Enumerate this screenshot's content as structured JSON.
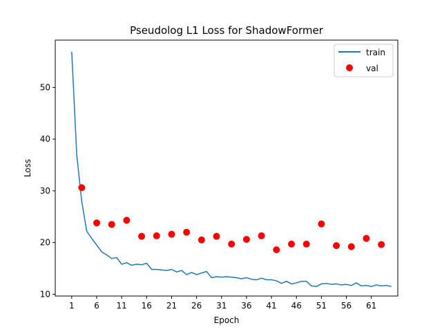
{
  "chart_data": {
    "type": "line",
    "title": "Pseudolog L1 Loss for ShadowFormer",
    "xlabel": "Epoch",
    "ylabel": "Loss",
    "xlim": [
      -2.3,
      66.3
    ],
    "ylim": [
      9.65,
      59.15
    ],
    "xticks": [
      1,
      6,
      11,
      16,
      21,
      26,
      31,
      36,
      41,
      46,
      51,
      56,
      61
    ],
    "yticks": [
      10,
      20,
      30,
      40,
      50
    ],
    "grid": false,
    "legend_position": "top-right",
    "series": [
      {
        "name": "train",
        "kind": "line",
        "color": "#1f77b4",
        "x": [
          1,
          2,
          3,
          4,
          5,
          6,
          7,
          8,
          9,
          10,
          11,
          12,
          13,
          14,
          15,
          16,
          17,
          18,
          19,
          20,
          21,
          22,
          23,
          24,
          25,
          26,
          27,
          28,
          29,
          30,
          31,
          32,
          33,
          34,
          35,
          36,
          37,
          38,
          39,
          40,
          41,
          42,
          43,
          44,
          45,
          46,
          47,
          48,
          49,
          50,
          51,
          52,
          53,
          54,
          55,
          56,
          57,
          58,
          59,
          60,
          61,
          62,
          63,
          64,
          65
        ],
        "y": [
          56.9,
          37.0,
          28.0,
          22.2,
          20.8,
          19.5,
          18.2,
          17.6,
          16.9,
          17.1,
          15.8,
          16.1,
          15.6,
          15.8,
          15.7,
          16.0,
          14.8,
          14.8,
          14.7,
          14.6,
          14.8,
          14.3,
          14.6,
          13.8,
          14.2,
          13.8,
          14.1,
          14.4,
          13.2,
          13.4,
          13.3,
          13.4,
          13.3,
          13.2,
          13.0,
          13.2,
          12.9,
          12.8,
          13.1,
          12.8,
          12.8,
          12.6,
          12.1,
          12.5,
          12.0,
          12.2,
          12.5,
          12.5,
          11.6,
          11.5,
          12.0,
          12.1,
          11.9,
          12.0,
          11.8,
          11.9,
          11.7,
          12.2,
          11.6,
          11.7,
          11.5,
          11.8,
          11.6,
          11.7,
          11.5
        ]
      },
      {
        "name": "val",
        "kind": "scatter",
        "color": "#ff0000",
        "x": [
          3,
          6,
          9,
          12,
          15,
          18,
          21,
          24,
          27,
          30,
          33,
          36,
          39,
          42,
          45,
          48,
          51,
          54,
          57,
          60,
          63
        ],
        "y": [
          30.6,
          23.8,
          23.5,
          24.3,
          21.2,
          21.3,
          21.6,
          22.0,
          20.5,
          21.2,
          19.7,
          20.6,
          21.3,
          18.6,
          19.7,
          19.7,
          23.6,
          19.4,
          19.2,
          20.8,
          19.6
        ]
      }
    ]
  }
}
